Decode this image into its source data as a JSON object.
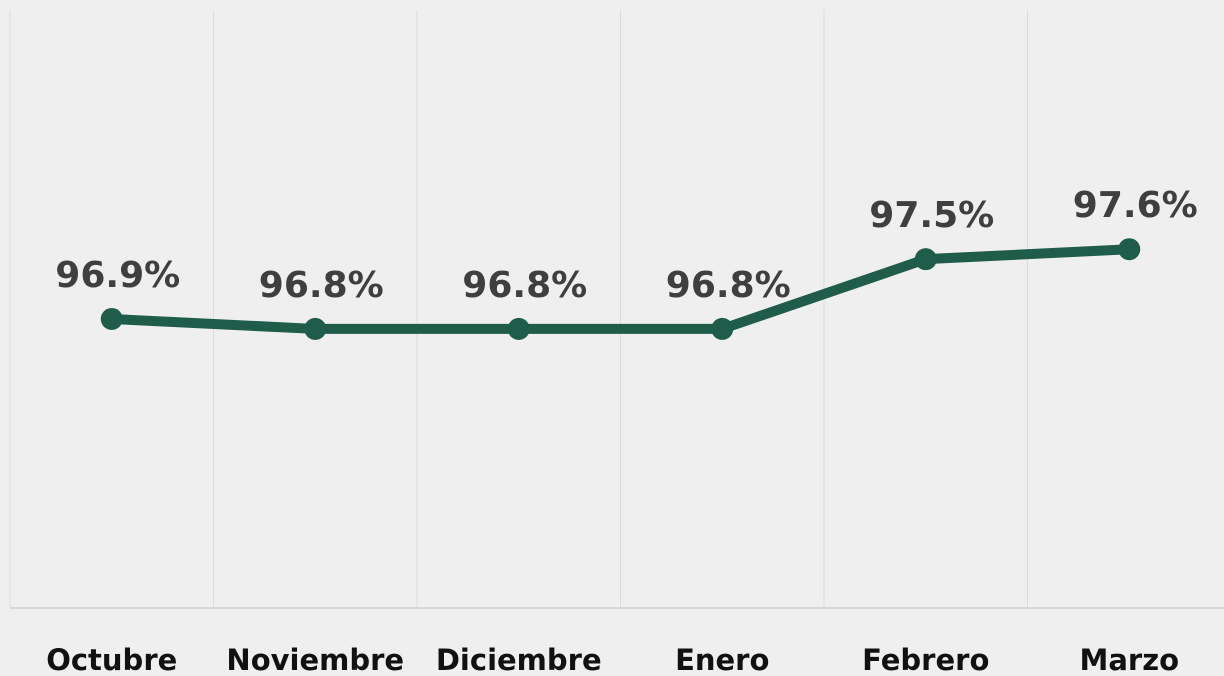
{
  "chart_data": {
    "type": "line",
    "categories": [
      "Octubre",
      "Noviembre",
      "Diciembre",
      "Enero",
      "Febrero",
      "Marzo"
    ],
    "series": [
      {
        "color": "#1f5c4a",
        "values": [
          96.9,
          96.8,
          96.8,
          96.8,
          97.5,
          97.6
        ],
        "value_labels": [
          "96.9%",
          "96.8%",
          "96.8%",
          "96.8%",
          "97.5%",
          "97.6%"
        ]
      }
    ],
    "ylim": [
      94,
      100
    ]
  }
}
